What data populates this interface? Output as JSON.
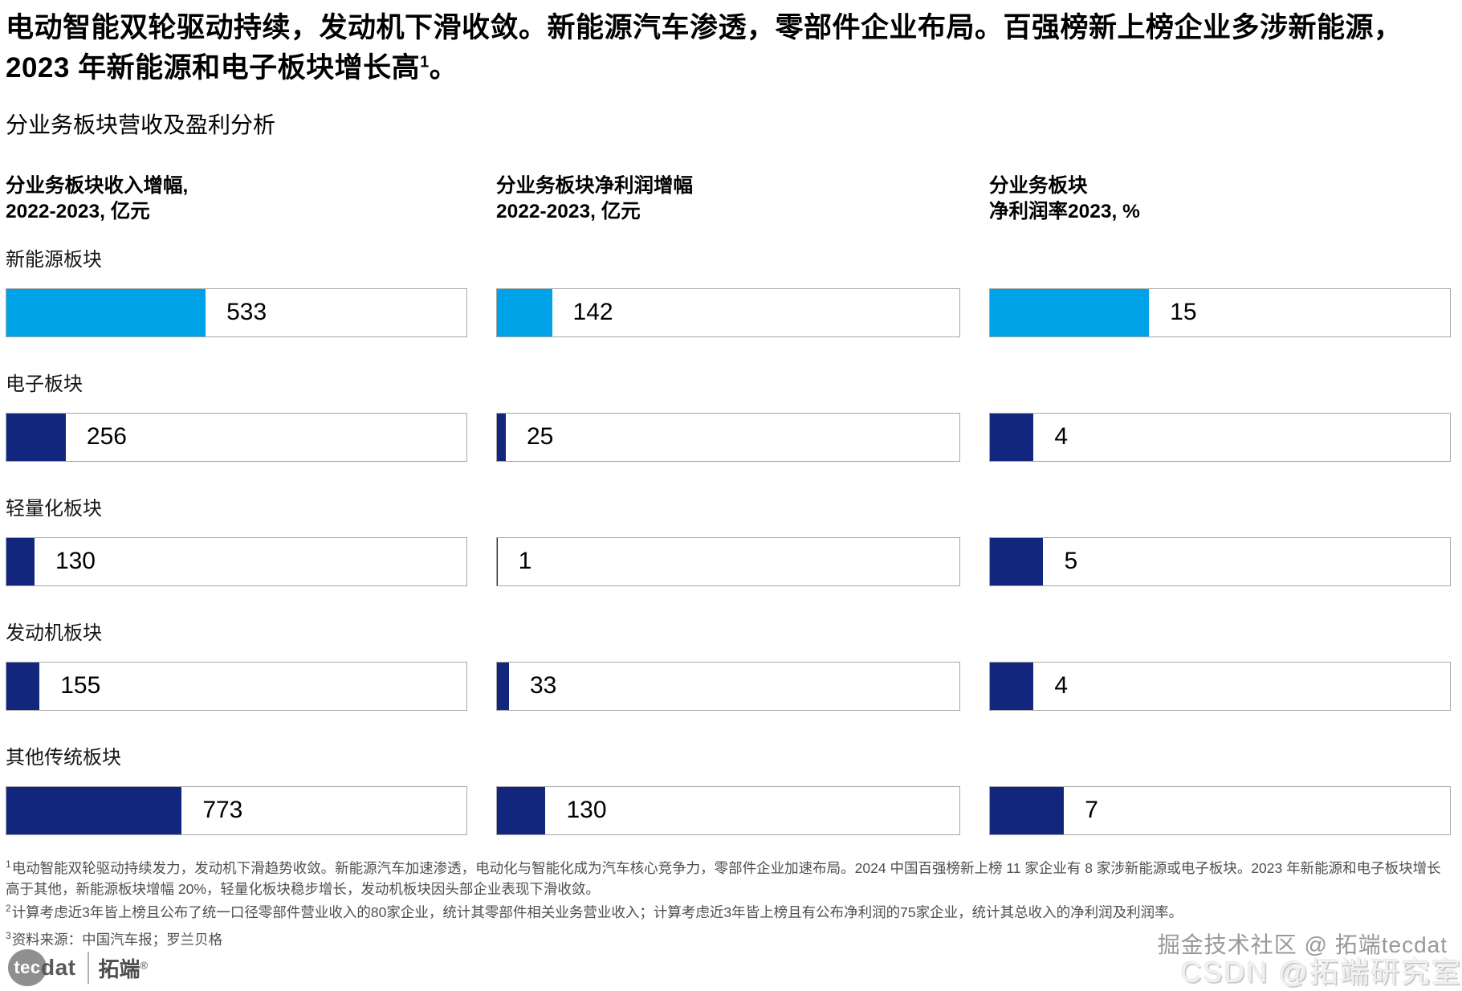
{
  "page": {
    "headline_text": "电动智能双轮驱动持续，发动机下滑收敛。新能源汽车渗透，零部件企业布局。百强榜新上榜企业多涉新能源，2023 年新能源和电子板块增长高",
    "headline_sup": "1",
    "headline_tail": "。",
    "section_title": "分业务板块营收及盈利分析"
  },
  "chart_data": {
    "type": "bar",
    "orientation": "horizontal",
    "grid": "off",
    "legend": "none",
    "categories": [
      "新能源板块",
      "电子板块",
      "轻量化板块",
      "发动机板块",
      "其他传统板块"
    ],
    "series": [
      {
        "name": "分业务板块收入增幅, 2022-2023, 亿元",
        "title_line1": "分业务板块收入增幅,",
        "title_line2": "2022-2023, 亿元",
        "unit": "亿元",
        "values": [
          533,
          256,
          130,
          155,
          773
        ],
        "fill_pct": [
          43.3,
          12.9,
          6.1,
          7.2,
          38.1
        ]
      },
      {
        "name": "分业务板块净利润增幅 2022-2023, 亿元",
        "title_line1": "分业务板块净利润增幅",
        "title_line2": "2022-2023, 亿元",
        "unit": "亿元",
        "values": [
          142,
          25,
          1,
          33,
          130
        ],
        "fill_pct": [
          11.9,
          1.9,
          0.1,
          2.6,
          10.5
        ]
      },
      {
        "name": "分业务板块净利润率2023, %",
        "title_line1": "分业务板块",
        "title_line2": "净利润率2023, %",
        "unit": "%",
        "values": [
          15,
          4,
          5,
          4,
          7
        ],
        "fill_pct": [
          34.6,
          9.5,
          11.6,
          9.5,
          16.1
        ]
      }
    ],
    "colors": {
      "highlight": "#00A2E8",
      "base": "#12267E",
      "bar_border": "#a6a6a6"
    },
    "highlight_row": "新能源板块"
  },
  "footnotes": [
    {
      "sup": "1",
      "text": "电动智能双轮驱动持续发力，发动机下滑趋势收敛。新能源汽车加速渗透，电动化与智能化成为汽车核心竞争力，零部件企业加速布局。2024 中国百强榜新上榜 11 家企业有 8 家涉新能源或电子板块。2023 年新能源和电子板块增长高于其他，新能源板块增幅 20%，轻量化板块稳步增长，发动机板块因头部企业表现下滑收敛。"
    },
    {
      "sup": "2",
      "text": "计算考虑近3年皆上榜且公布了统一口径零部件营业收入的80家企业，统计其零部件相关业务营业收入；计算考虑近3年皆上榜且有公布净利润的75家企业，统计其总收入的净利润及利润率。"
    },
    {
      "sup": "3",
      "text": "资料来源：中国汽车报；罗兰贝格"
    }
  ],
  "footer": {
    "logo_circle_text": "tec",
    "logo_rest_text": "dat",
    "logo_brand": "拓端",
    "logo_reg": "®",
    "watermark_top": "掘金技术社区 @ 拓端tecdat",
    "watermark_bottom": "CSDN @拓端研究室"
  }
}
